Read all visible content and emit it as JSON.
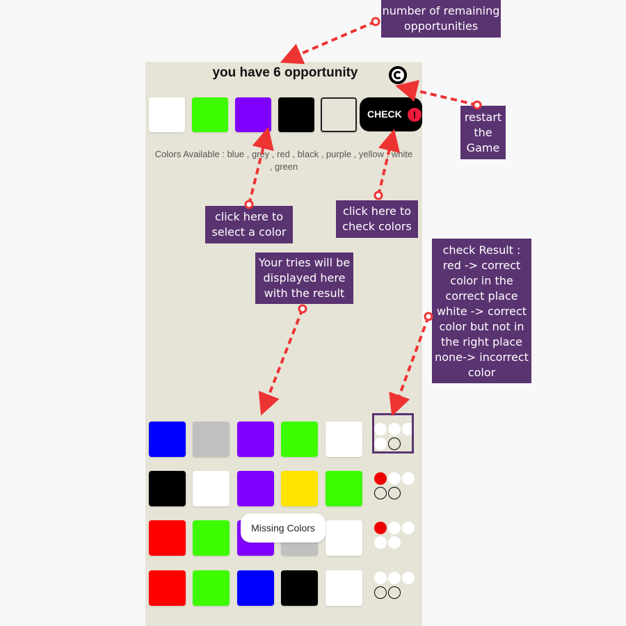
{
  "game": {
    "title": "you have 6 opportunity",
    "check_label": "CHECK",
    "warn_glyph": "!",
    "available": "Colors Available : blue , grey , red , black , purple , yellow , white , green",
    "toast": "Missing Colors"
  },
  "selection": [
    "white",
    "green",
    "purple",
    "black",
    "empty"
  ],
  "tries": [
    {
      "colors": [
        "blue",
        "grey",
        "purple",
        "green",
        "white"
      ],
      "feedback": [
        "white",
        "white",
        "white",
        "white",
        "none"
      ]
    },
    {
      "colors": [
        "black",
        "white",
        "purple",
        "yellow",
        "green"
      ],
      "feedback": [
        "red",
        "white",
        "white",
        "none",
        "none"
      ]
    },
    {
      "colors": [
        "red",
        "green",
        "purple",
        "grey",
        "white"
      ],
      "feedback": [
        "red",
        "white",
        "white",
        "white",
        "white"
      ]
    },
    {
      "colors": [
        "red",
        "green",
        "blue",
        "black",
        "white"
      ],
      "feedback": [
        "white",
        "white",
        "white",
        "none",
        "none"
      ]
    }
  ],
  "palette": {
    "white": "#ffffff",
    "green": "#3dfc00",
    "purple": "#8000ff",
    "black": "#000000",
    "blue": "#0000ff",
    "grey": "#c0c0c0",
    "yellow": "#ffe400",
    "red": "#ff0000"
  },
  "annotations": {
    "remaining": [
      "number of remaining",
      "opportunities"
    ],
    "restart": [
      "restart",
      "the",
      "Game"
    ],
    "select": [
      "click here to",
      "select a color"
    ],
    "check": [
      "click here to",
      "check colors"
    ],
    "tries": [
      "Your tries will be",
      "displayed here",
      "with the result"
    ],
    "result": [
      "check Result :",
      "red -> correct",
      "color in the",
      "correct place",
      "white -> correct",
      "color but not in",
      "the right place",
      "none-> incorrect",
      "color"
    ]
  },
  "accent": {
    "annotation_bg": "#5a3371",
    "arrow": "#ee3333",
    "game_bg": "#e6e4d6"
  }
}
